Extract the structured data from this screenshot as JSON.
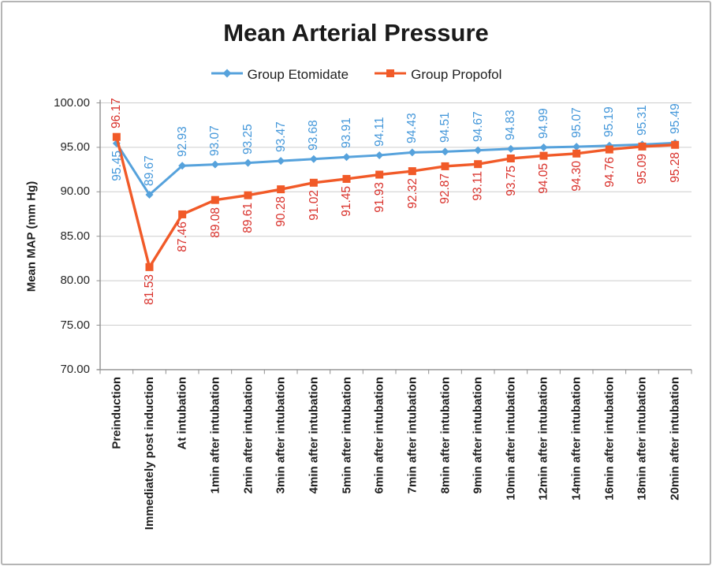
{
  "colors": {
    "frame_border": "#b5b5b5",
    "grid": "#cdcdcd",
    "axis": "#8f8f8f",
    "title_text": "#1a1a1a",
    "etomidate_blue": "#56a2dc",
    "etomidate_label_blue": "#4598da",
    "propofol_orange": "#f15a28",
    "propofol_label_red": "#d9322c"
  },
  "chart_data": {
    "type": "line",
    "title": "Mean Arterial Pressure",
    "xlabel": "",
    "ylabel": "Mean MAP (mm Hg)",
    "ylim": [
      70,
      100
    ],
    "ytick_step": 5,
    "ytick_labels": [
      "100.00",
      "95.00",
      "90.00",
      "85.00",
      "80.00",
      "75.00",
      "70.00"
    ],
    "grid": true,
    "legend_position": "top-center",
    "value_label_decimals": 2,
    "categories": [
      "Preinduction",
      "Immediately post induction",
      "At intubation",
      "1min after intubation",
      "2min after intubation",
      "3min after intubation",
      "4min after intubation",
      "5min after intubation",
      "6min after intubation",
      "7min after intubation",
      "8min after intubation",
      "9min after intubation",
      "10min after intubation",
      "12min after intubation",
      "14min after intubation",
      "16min after intubation",
      "18min after intubation",
      "20min after intubation"
    ],
    "series": [
      {
        "name": "Group Etomidate",
        "marker": "diamond",
        "color": "#56a2dc",
        "label_color": "#4598da",
        "labels_position": "above",
        "first_label_flipped": true,
        "values": [
          95.45,
          89.67,
          92.93,
          93.07,
          93.25,
          93.47,
          93.68,
          93.91,
          94.11,
          94.43,
          94.51,
          94.67,
          94.83,
          94.99,
          95.07,
          95.19,
          95.31,
          95.49
        ]
      },
      {
        "name": "Group Propofol",
        "marker": "square",
        "color": "#f15a28",
        "label_color": "#d9322c",
        "labels_position": "below",
        "first_label_flipped": true,
        "values": [
          96.17,
          81.53,
          87.46,
          89.08,
          89.61,
          90.28,
          91.02,
          91.45,
          91.93,
          92.32,
          92.87,
          93.11,
          93.75,
          94.05,
          94.3,
          94.76,
          95.09,
          95.28
        ]
      }
    ]
  }
}
